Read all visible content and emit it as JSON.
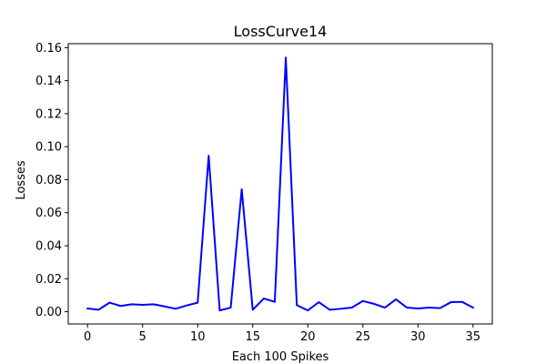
{
  "chart_data": {
    "type": "line",
    "title": "LossCurve14",
    "xlabel": "Each 100 Spikes",
    "ylabel": "Losses",
    "xlim": [
      -1.75,
      36.75
    ],
    "ylim": [
      -0.0074,
      0.1624
    ],
    "xticks": [
      0,
      5,
      10,
      15,
      20,
      25,
      30,
      35
    ],
    "xtick_labels": [
      "0",
      "5",
      "10",
      "15",
      "20",
      "25",
      "30",
      "35"
    ],
    "yticks": [
      0.0,
      0.02,
      0.04,
      0.06,
      0.08,
      0.1,
      0.12,
      0.14,
      0.16
    ],
    "ytick_labels": [
      "0.00",
      "0.02",
      "0.04",
      "0.06",
      "0.08",
      "0.10",
      "0.12",
      "0.14",
      "0.16"
    ],
    "grid": false,
    "series": [
      {
        "color": "#0000ff",
        "x": [
          0,
          1,
          2,
          3,
          4,
          5,
          6,
          7,
          8,
          9,
          10,
          11,
          12,
          13,
          14,
          15,
          16,
          17,
          18,
          19,
          20,
          21,
          22,
          23,
          24,
          25,
          26,
          27,
          28,
          29,
          30,
          31,
          32,
          33,
          34,
          35
        ],
        "values": [
          0.002,
          0.0012,
          0.0055,
          0.0035,
          0.0045,
          0.0042,
          0.0045,
          0.0032,
          0.0018,
          0.0038,
          0.0055,
          0.0945,
          0.0008,
          0.0025,
          0.0742,
          0.0012,
          0.008,
          0.006,
          0.154,
          0.004,
          0.0008,
          0.0058,
          0.0012,
          0.0018,
          0.0025,
          0.0065,
          0.0048,
          0.0025,
          0.0075,
          0.0025,
          0.002,
          0.0025,
          0.0022,
          0.0058,
          0.006,
          0.0025
        ]
      }
    ]
  }
}
